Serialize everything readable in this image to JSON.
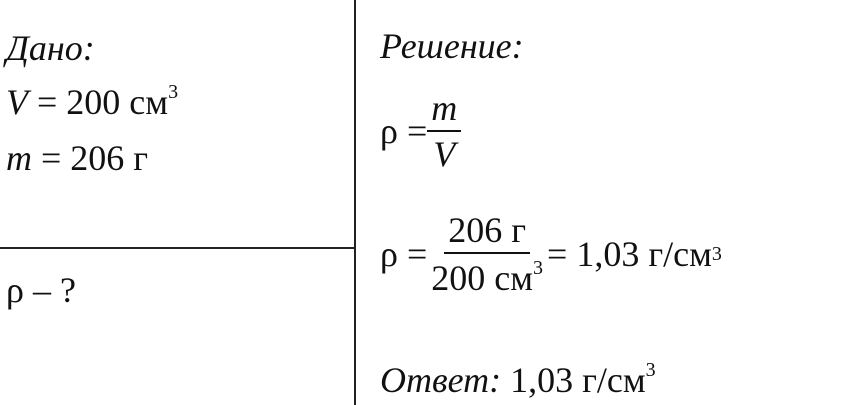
{
  "given": {
    "heading": "Дано:",
    "volume": {
      "symbol": "V",
      "eq": " = 200 см",
      "exp": "3"
    },
    "mass": {
      "symbol": "m",
      "eq": " = 206 г"
    },
    "unknown": "ρ – ?"
  },
  "solution": {
    "heading": "Решение:",
    "formula": {
      "lhs": "ρ = ",
      "num": "m",
      "den": "V"
    },
    "calc": {
      "lhs": "ρ = ",
      "num": "206 г",
      "den": "200 см",
      "den_exp": "3",
      "result": " = 1,03 г/см",
      "result_exp": "3"
    },
    "answer": {
      "label": "Ответ:",
      "value": " 1,03 г/см",
      "exp": "3"
    }
  }
}
